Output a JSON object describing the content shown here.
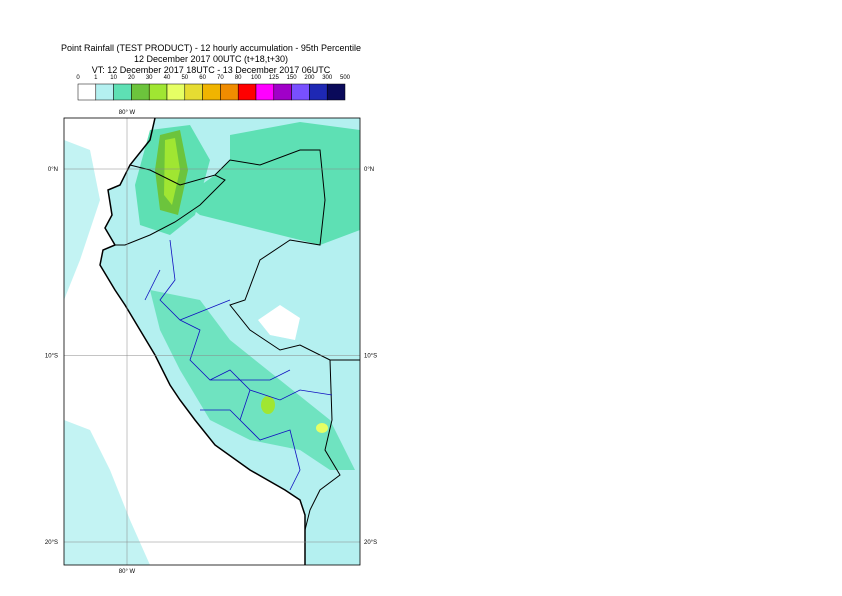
{
  "header": {
    "title": "Point Rainfall (TEST PRODUCT) - 12 hourly accumulation - 95th Percentile",
    "run": "12 December 2017 00UTC (t+18,t+30)",
    "valid": "VT: 12 December 2017 18UTC - 13 December 2017 06UTC"
  },
  "legend": {
    "thresholds": [
      0,
      1,
      10,
      20,
      30,
      40,
      50,
      60,
      70,
      80,
      100,
      125,
      150,
      200,
      300,
      500
    ],
    "colors": [
      "#ffffff",
      "#b4f0f0",
      "#5ee0b4",
      "#6cc43c",
      "#a0e632",
      "#e6ff64",
      "#e6dc32",
      "#f0b400",
      "#f08c00",
      "#ff0000",
      "#ff00ff",
      "#a000c8",
      "#7850ff",
      "#1e28b4",
      "#0a0a5a"
    ]
  },
  "graticule": {
    "lat": [
      {
        "value": 0,
        "label": "0°N"
      },
      {
        "value": -10,
        "label": "10°S"
      },
      {
        "value": -20,
        "label": "20°S"
      }
    ],
    "lon": [
      {
        "value": -80,
        "label": "80° W"
      }
    ]
  }
}
